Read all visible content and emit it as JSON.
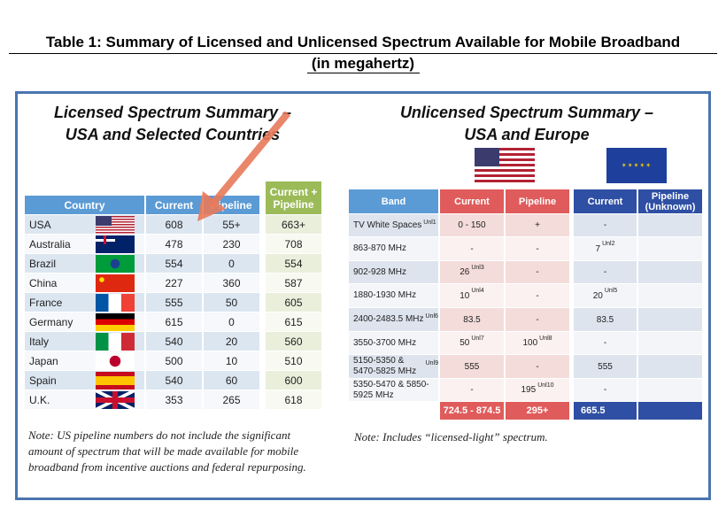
{
  "title_line1": "Table 1: Summary of Licensed and Unlicensed Spectrum Available for Mobile Broadband",
  "title_line2": "(in megahertz)",
  "licensed": {
    "title1": "Licensed Spectrum Summary –",
    "title2": "USA and Selected Countries",
    "headers": [
      "Country",
      "Current",
      "Pipeline",
      "Current + Pipeline"
    ],
    "rows": [
      {
        "country": "USA",
        "flag": "us",
        "current": "608",
        "pipeline": "55+",
        "total": "663+"
      },
      {
        "country": "Australia",
        "flag": "au",
        "current": "478",
        "pipeline": "230",
        "total": "708"
      },
      {
        "country": "Brazil",
        "flag": "br",
        "current": "554",
        "pipeline": "0",
        "total": "554"
      },
      {
        "country": "China",
        "flag": "cn",
        "current": "227",
        "pipeline": "360",
        "total": "587"
      },
      {
        "country": "France",
        "flag": "fr",
        "current": "555",
        "pipeline": "50",
        "total": "605"
      },
      {
        "country": "Germany",
        "flag": "de",
        "current": "615",
        "pipeline": "0",
        "total": "615"
      },
      {
        "country": "Italy",
        "flag": "it",
        "current": "540",
        "pipeline": "20",
        "total": "560"
      },
      {
        "country": "Japan",
        "flag": "jp",
        "current": "500",
        "pipeline": "10",
        "total": "510"
      },
      {
        "country": "Spain",
        "flag": "es",
        "current": "540",
        "pipeline": "60",
        "total": "600"
      },
      {
        "country": "U.K.",
        "flag": "uk",
        "current": "353",
        "pipeline": "265",
        "total": "618"
      }
    ],
    "note": "Note:  US pipeline numbers do not include the significant amount of spectrum that will be made available for mobile broadband from incentive auctions and federal repurposing."
  },
  "unlicensed": {
    "title1": "Unlicensed Spectrum Summary –",
    "title2": "USA and Europe",
    "headers": [
      "Band",
      "Current",
      "Pipeline",
      "Current",
      "Pipeline (Unknown)"
    ],
    "rows": [
      {
        "band": "TV White Spaces",
        "band_sup": "Unl1",
        "us_cur": "0 - 150",
        "us_cur_sup": "",
        "us_pipe": "+",
        "us_pipe_sup": "",
        "eu_cur": "-",
        "eu_cur_sup": ""
      },
      {
        "band": "863-870 MHz",
        "band_sup": "",
        "us_cur": "-",
        "us_cur_sup": "",
        "us_pipe": "-",
        "us_pipe_sup": "",
        "eu_cur": "7",
        "eu_cur_sup": "Unl2"
      },
      {
        "band": "902-928 MHz",
        "band_sup": "",
        "us_cur": "26",
        "us_cur_sup": "Unl3",
        "us_pipe": "-",
        "us_pipe_sup": "",
        "eu_cur": "-",
        "eu_cur_sup": ""
      },
      {
        "band": "1880-1930 MHz",
        "band_sup": "",
        "us_cur": "10",
        "us_cur_sup": "Unl4",
        "us_pipe": "-",
        "us_pipe_sup": "",
        "eu_cur": "20",
        "eu_cur_sup": "Unl5"
      },
      {
        "band": "2400-2483.5 MHz",
        "band_sup": "Unl6",
        "us_cur": "83.5",
        "us_cur_sup": "",
        "us_pipe": "-",
        "us_pipe_sup": "",
        "eu_cur": "83.5",
        "eu_cur_sup": ""
      },
      {
        "band": "3550-3700 MHz",
        "band_sup": "",
        "us_cur": "50",
        "us_cur_sup": "Unl7",
        "us_pipe": "100",
        "us_pipe_sup": "Unl8",
        "eu_cur": "-",
        "eu_cur_sup": ""
      },
      {
        "band": "5150-5350 & 5470-5825 MHz",
        "band_sup": "Unl9",
        "us_cur": "555",
        "us_cur_sup": "",
        "us_pipe": "-",
        "us_pipe_sup": "",
        "eu_cur": "555",
        "eu_cur_sup": ""
      },
      {
        "band": "5350-5470 & 5850-5925 MHz",
        "band_sup": "",
        "us_cur": "-",
        "us_cur_sup": "",
        "us_pipe": "195",
        "us_pipe_sup": "Unl10",
        "eu_cur": "-",
        "eu_cur_sup": ""
      }
    ],
    "totals": {
      "us_cur": "724.5 - 874.5",
      "us_pipe": "295+",
      "eu_cur": "665.5"
    },
    "note": "Note:  Includes “licensed-light” spectrum."
  },
  "colors": {
    "frame": "#4a75b0",
    "lic_header": "#5b9bd5",
    "total_header": "#9bbb59",
    "us_red": "#e05b5b",
    "eu_blue": "#2e4fa3",
    "arrow": "#e87a5a"
  }
}
